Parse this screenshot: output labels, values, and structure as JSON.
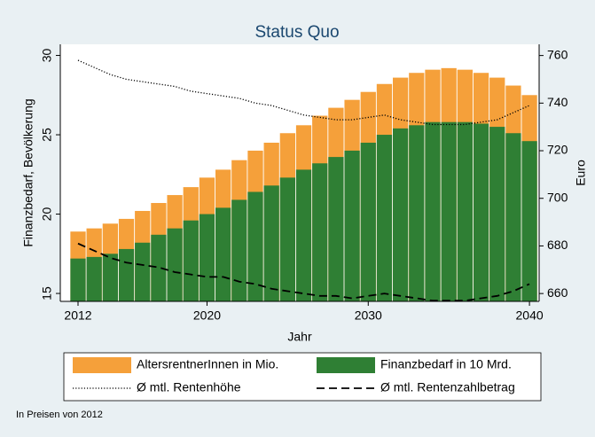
{
  "chart_data": {
    "type": "bar",
    "title": "Status Quo",
    "x_label": "Jahr",
    "y_label": "Finanzbedarf, Bevölkerung",
    "y2_label": "Euro",
    "note": "In Preisen von 2012",
    "x": [
      2012,
      2013,
      2014,
      2015,
      2016,
      2017,
      2018,
      2019,
      2020,
      2021,
      2022,
      2023,
      2024,
      2025,
      2026,
      2027,
      2028,
      2029,
      2030,
      2031,
      2032,
      2033,
      2034,
      2035,
      2036,
      2037,
      2038,
      2039,
      2040
    ],
    "xlim": [
      2010.9,
      2040.6
    ],
    "xticks": [
      2012,
      2020,
      2030,
      2040
    ],
    "ylim": [
      14.5,
      30.7
    ],
    "yticks": [
      15,
      20,
      25,
      30
    ],
    "y2lim": [
      656.7,
      764.7
    ],
    "y2ticks": [
      660,
      680,
      700,
      720,
      740,
      760
    ],
    "series": [
      {
        "name": "AltersrentnerInnen in Mio.",
        "color": "#f5a03a",
        "kind": "bar",
        "values": [
          18.9,
          19.1,
          19.4,
          19.7,
          20.2,
          20.7,
          21.2,
          21.7,
          22.3,
          22.8,
          23.4,
          24.0,
          24.5,
          25.1,
          25.6,
          26.2,
          26.7,
          27.2,
          27.7,
          28.2,
          28.6,
          28.9,
          29.1,
          29.2,
          29.1,
          28.9,
          28.6,
          28.1,
          27.5
        ]
      },
      {
        "name": "Finanzbedarf in 10 Mrd.",
        "color": "#2f7f34",
        "kind": "bar",
        "values": [
          17.2,
          17.3,
          17.5,
          17.8,
          18.2,
          18.7,
          19.1,
          19.6,
          20.0,
          20.4,
          20.9,
          21.4,
          21.8,
          22.3,
          22.8,
          23.2,
          23.6,
          24.0,
          24.5,
          25.0,
          25.4,
          25.6,
          25.8,
          25.8,
          25.8,
          25.7,
          25.5,
          25.1,
          24.6
        ]
      },
      {
        "name": "Ø mtl. Rentenhöhe",
        "color": "#000000",
        "kind": "line",
        "style": "dotted",
        "axis": "y2",
        "values": [
          758,
          755,
          752,
          750,
          749,
          748,
          747,
          745,
          744,
          743,
          742,
          740,
          739,
          737,
          735,
          734,
          733,
          733,
          734,
          735,
          733,
          732,
          731,
          731,
          731,
          732,
          733,
          736,
          739
        ]
      },
      {
        "name": "Ø mtl. Rentenzahlbetrag",
        "color": "#000000",
        "kind": "line",
        "style": "dashed",
        "axis": "y2",
        "values": [
          681,
          678,
          675,
          673,
          672,
          671,
          669,
          668,
          667,
          667,
          665,
          664,
          662,
          661,
          660,
          659,
          659,
          658,
          659,
          660,
          659,
          658,
          657,
          657,
          657,
          658,
          659,
          661,
          664
        ]
      }
    ]
  }
}
